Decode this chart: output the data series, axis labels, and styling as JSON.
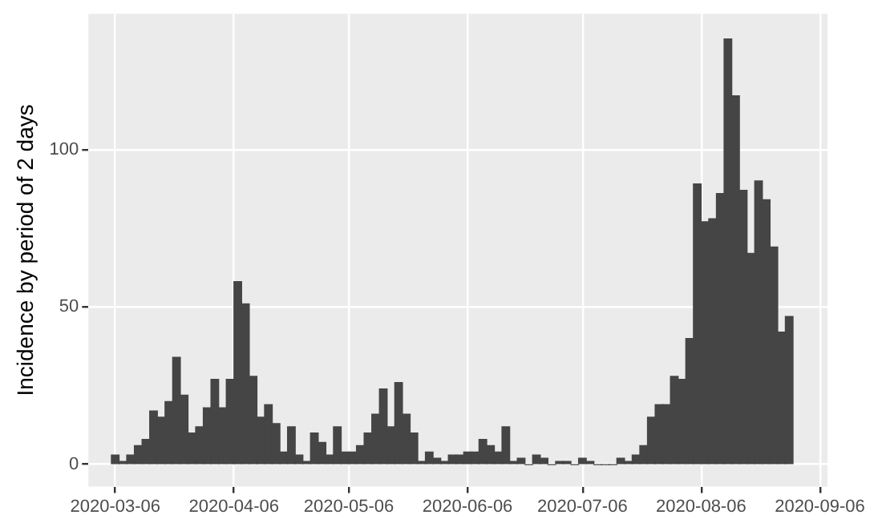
{
  "chart_data": {
    "type": "histogram",
    "ylabel": "Incidence by period of 2 days",
    "color": "#454545",
    "bins": [
      "2020-03-05",
      "2020-03-07",
      "2020-03-09",
      "2020-03-11",
      "2020-03-13",
      "2020-03-15",
      "2020-03-17",
      "2020-03-19",
      "2020-03-21",
      "2020-03-23",
      "2020-03-25",
      "2020-03-27",
      "2020-03-29",
      "2020-03-31",
      "2020-04-02",
      "2020-04-04",
      "2020-04-06",
      "2020-04-08",
      "2020-04-10",
      "2020-04-12",
      "2020-04-14",
      "2020-04-16",
      "2020-04-18",
      "2020-04-20",
      "2020-04-22",
      "2020-04-24",
      "2020-04-26",
      "2020-04-28",
      "2020-04-30",
      "2020-05-02",
      "2020-05-04",
      "2020-05-06",
      "2020-05-08",
      "2020-05-10",
      "2020-05-12",
      "2020-05-14",
      "2020-05-16",
      "2020-05-18",
      "2020-05-20",
      "2020-05-22",
      "2020-05-24",
      "2020-05-26",
      "2020-05-28",
      "2020-05-30",
      "2020-06-01",
      "2020-06-03",
      "2020-06-05",
      "2020-06-07",
      "2020-06-09",
      "2020-06-11",
      "2020-06-13",
      "2020-06-15",
      "2020-06-17",
      "2020-06-19",
      "2020-06-21",
      "2020-06-23",
      "2020-06-25",
      "2020-06-27",
      "2020-06-29",
      "2020-07-01",
      "2020-07-03",
      "2020-07-05",
      "2020-07-07",
      "2020-07-09",
      "2020-07-11",
      "2020-07-13",
      "2020-07-15",
      "2020-07-17",
      "2020-07-19",
      "2020-07-21",
      "2020-07-23",
      "2020-07-25",
      "2020-07-27",
      "2020-07-29",
      "2020-07-31",
      "2020-08-02",
      "2020-08-04",
      "2020-08-06",
      "2020-08-08",
      "2020-08-10",
      "2020-08-12",
      "2020-08-14",
      "2020-08-16",
      "2020-08-18",
      "2020-08-20",
      "2020-08-22",
      "2020-08-24",
      "2020-08-26",
      "2020-08-28",
      "2020-08-30"
    ],
    "values": [
      3,
      1,
      3,
      6,
      8,
      17,
      15,
      20,
      34,
      22,
      10,
      12,
      18,
      27,
      18,
      27,
      58,
      51,
      28,
      15,
      19,
      13,
      4,
      12,
      3,
      1,
      10,
      7,
      3,
      12,
      4,
      4,
      6,
      10,
      16,
      24,
      12,
      26,
      16,
      10,
      1,
      4,
      2,
      1,
      3,
      3,
      4,
      4,
      8,
      6,
      4,
      12,
      1,
      2,
      0,
      3,
      2,
      0,
      1,
      1,
      0,
      2,
      1,
      0,
      0,
      0,
      2,
      1,
      3,
      6,
      15,
      19,
      19,
      28,
      27,
      40,
      89,
      77,
      78,
      86,
      135,
      117,
      87,
      67,
      90,
      84,
      69,
      42,
      47
    ],
    "xlim": [
      "2020-02-28",
      "2020-09-08"
    ],
    "xticks": [
      "2020-03-06",
      "2020-04-06",
      "2020-05-06",
      "2020-06-06",
      "2020-07-06",
      "2020-08-06",
      "2020-09-06"
    ],
    "ylim": [
      -7,
      143
    ],
    "yticks": [
      0,
      50,
      100
    ],
    "grid": true,
    "legend": false
  }
}
